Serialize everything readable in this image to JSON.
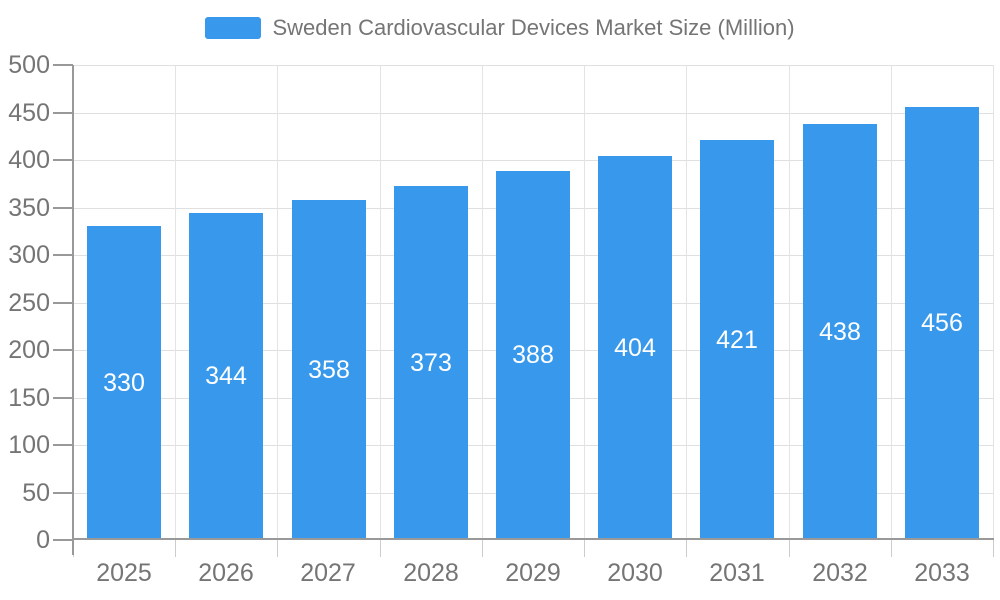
{
  "legend": {
    "label": "Sweden Cardiovascular Devices Market Size (Million)"
  },
  "chart_data": {
    "type": "bar",
    "title": "Sweden Cardiovascular Devices Market Size (Million)",
    "categories": [
      "2025",
      "2026",
      "2027",
      "2028",
      "2029",
      "2030",
      "2031",
      "2032",
      "2033"
    ],
    "values": [
      330,
      344,
      358,
      373,
      388,
      404,
      421,
      438,
      456
    ],
    "xlabel": "",
    "ylabel": "",
    "ylim": [
      0,
      500
    ],
    "y_ticks": [
      0,
      50,
      100,
      150,
      200,
      250,
      300,
      350,
      400,
      450,
      500
    ],
    "grid": true,
    "legend_position": "top-center",
    "value_label_position": "inside-center"
  },
  "colors": {
    "bar": "#3899EC",
    "bar_value_label": "#FFFFFF",
    "gridline": "#E0E0E0",
    "vertical_gridline": "#E4E4E4",
    "axis_line": "#999999",
    "x_tick": "#CCCCCC",
    "axis_label": "#757575",
    "legend_text": "#757575",
    "background": "#FFFFFF"
  }
}
